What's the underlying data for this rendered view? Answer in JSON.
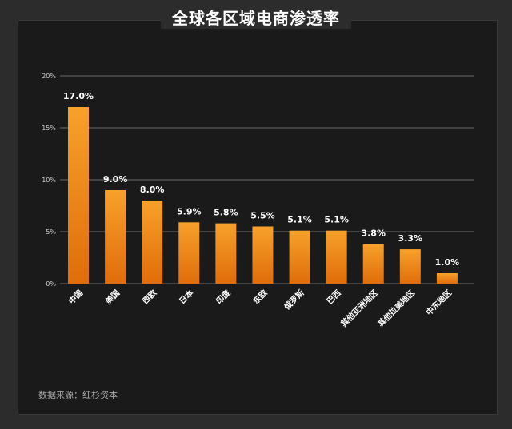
{
  "title": "全球各区域电商渗透率",
  "source": "数据来源：红杉资本",
  "colors": {
    "bar_top": "#f7a12b",
    "bar_bottom": "#e06d0a",
    "grid": "#6a6a6a",
    "label": "#ffffff",
    "tick": "#cfcfcf"
  },
  "chart_data": {
    "type": "bar",
    "title": "全球各区域电商渗透率",
    "categories": [
      "中国",
      "美国",
      "西欧",
      "日本",
      "印度",
      "东欧",
      "俄罗斯",
      "巴西",
      "其他亚洲地区",
      "其他拉美地区",
      "中东地区"
    ],
    "values": [
      17.0,
      9.0,
      8.0,
      5.9,
      5.8,
      5.5,
      5.1,
      5.1,
      3.8,
      3.3,
      1.0
    ],
    "data_labels": [
      "17.0%",
      "9.0%",
      "8.0%",
      "5.9%",
      "5.8%",
      "5.5%",
      "5.1%",
      "5.1%",
      "3.8%",
      "3.3%",
      "1.0%"
    ],
    "yticks": [
      0,
      5,
      10,
      15,
      20
    ],
    "ytick_labels": [
      "0%",
      "5%",
      "10%",
      "15%",
      "20%"
    ],
    "ylim": [
      0,
      20
    ],
    "grid": true,
    "xlabel": "",
    "ylabel": ""
  }
}
